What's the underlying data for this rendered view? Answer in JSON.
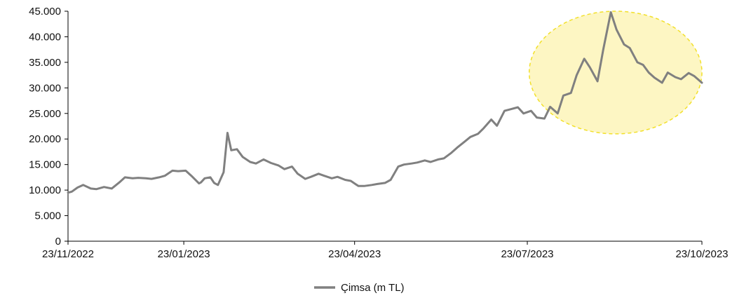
{
  "chart_data": {
    "type": "line",
    "title": "",
    "xlabel": "",
    "ylabel": "",
    "ylim": [
      0,
      45000
    ],
    "y_ticks": [
      0,
      5000,
      10000,
      15000,
      20000,
      25000,
      30000,
      35000,
      40000,
      45000
    ],
    "y_tick_labels": [
      "0",
      "5.000",
      "10.000",
      "15.000",
      "20.000",
      "25.000",
      "30.000",
      "35.000",
      "40.000",
      "45.000"
    ],
    "x_ticks": [
      "2022-11-23",
      "2023-01-23",
      "2023-04-23",
      "2023-07-23",
      "2023-10-23"
    ],
    "x_tick_labels": [
      "23/11/2022",
      "23/01/2023",
      "23/04/2023",
      "23/07/2023",
      "23/10/2023"
    ],
    "xlim": [
      "2022-11-23",
      "2023-10-23"
    ],
    "grid": false,
    "legend_position": "bottom-center",
    "highlight": {
      "type": "ellipse",
      "x_range": [
        "2023-07-24",
        "2023-10-23"
      ],
      "y_range": [
        21000,
        45000
      ],
      "fill": "#fdf6c3",
      "stroke": "#f2e02a"
    },
    "series": [
      {
        "name": "Çimsa (m TL)",
        "color": "#808080",
        "x": [
          "2022-11-23",
          "2022-11-25",
          "2022-11-28",
          "2022-12-01",
          "2022-12-05",
          "2022-12-08",
          "2022-12-12",
          "2022-12-16",
          "2022-12-20",
          "2022-12-23",
          "2022-12-27",
          "2022-12-30",
          "2023-01-03",
          "2023-01-06",
          "2023-01-10",
          "2023-01-13",
          "2023-01-17",
          "2023-01-20",
          "2023-01-24",
          "2023-01-27",
          "2023-01-31",
          "2023-02-01",
          "2023-02-03",
          "2023-02-06",
          "2023-02-08",
          "2023-02-10",
          "2023-02-13",
          "2023-02-15",
          "2023-02-17",
          "2023-02-20",
          "2023-02-23",
          "2023-02-27",
          "2023-03-02",
          "2023-03-06",
          "2023-03-10",
          "2023-03-14",
          "2023-03-17",
          "2023-03-21",
          "2023-03-24",
          "2023-03-28",
          "2023-03-31",
          "2023-04-04",
          "2023-04-07",
          "2023-04-11",
          "2023-04-14",
          "2023-04-18",
          "2023-04-21",
          "2023-04-25",
          "2023-04-28",
          "2023-05-02",
          "2023-05-05",
          "2023-05-09",
          "2023-05-12",
          "2023-05-16",
          "2023-05-19",
          "2023-05-23",
          "2023-05-26",
          "2023-05-30",
          "2023-06-02",
          "2023-06-06",
          "2023-06-09",
          "2023-06-13",
          "2023-06-16",
          "2023-06-20",
          "2023-06-23",
          "2023-06-27",
          "2023-06-30",
          "2023-07-04",
          "2023-07-07",
          "2023-07-11",
          "2023-07-14",
          "2023-07-18",
          "2023-07-21",
          "2023-07-25",
          "2023-07-28",
          "2023-08-01",
          "2023-08-04",
          "2023-08-08",
          "2023-08-11",
          "2023-08-15",
          "2023-08-18",
          "2023-08-22",
          "2023-08-25",
          "2023-08-29",
          "2023-09-01",
          "2023-09-05",
          "2023-09-08",
          "2023-09-12",
          "2023-09-15",
          "2023-09-19",
          "2023-09-22",
          "2023-09-25",
          "2023-09-28",
          "2023-10-02",
          "2023-10-05",
          "2023-10-09",
          "2023-10-12",
          "2023-10-16",
          "2023-10-19",
          "2023-10-23"
        ],
        "values": [
          9500,
          9700,
          10500,
          11000,
          10300,
          10200,
          10600,
          10300,
          11500,
          12500,
          12300,
          12400,
          12300,
          12200,
          12500,
          12800,
          13800,
          13700,
          13800,
          12800,
          11300,
          11500,
          12300,
          12500,
          11400,
          11000,
          13500,
          21200,
          17800,
          18000,
          16500,
          15500,
          15200,
          16000,
          15300,
          14800,
          14100,
          14600,
          13200,
          12200,
          12600,
          13200,
          12800,
          12300,
          12600,
          12000,
          11800,
          10800,
          10800,
          11000,
          11200,
          11400,
          12000,
          14600,
          15000,
          15200,
          15400,
          15800,
          15500,
          16000,
          16200,
          17300,
          18300,
          19500,
          20400,
          21000,
          22100,
          23800,
          22600,
          25500,
          25800,
          26200,
          25000,
          25500,
          24200,
          24000,
          26300,
          25000,
          28500,
          29000,
          32500,
          35700,
          34000,
          31300,
          37500,
          44800,
          41400,
          38500,
          37800,
          35000,
          34500,
          33000,
          32000,
          31000,
          33000,
          32100,
          31700,
          32900,
          32300,
          31000
        ]
      }
    ]
  }
}
